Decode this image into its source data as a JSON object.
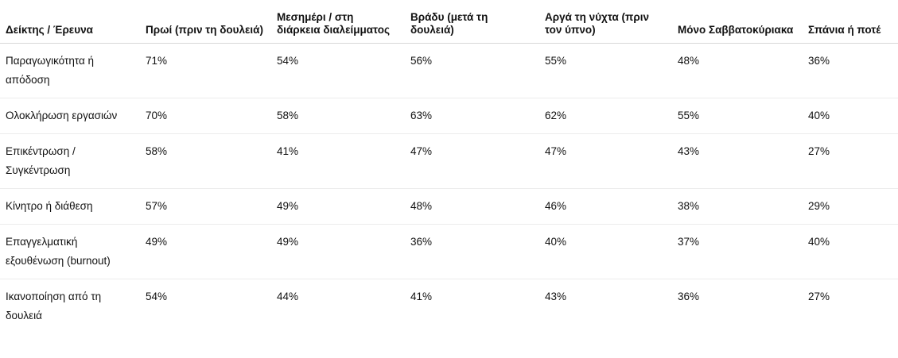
{
  "table": {
    "headers": [
      "Δείκτης / Έρευνα",
      "Πρωί (πριν τη δουλειά)",
      "Μεσημέρι / στη διάρκεια διαλείμματος",
      "Βράδυ (μετά τη δουλειά)",
      "Αργά τη νύχτα (πριν τον ύπνο)",
      "Μόνο Σαββατοκύριακα",
      "Σπάνια ή ποτέ"
    ],
    "rows": [
      [
        "Παραγωγικότητα ή απόδοση",
        "71%",
        "54%",
        "56%",
        "55%",
        "48%",
        "36%"
      ],
      [
        "Ολοκλήρωση εργασιών",
        "70%",
        "58%",
        "63%",
        "62%",
        "55%",
        "40%"
      ],
      [
        "Επικέντρωση / Συγκέντρωση",
        "58%",
        "41%",
        "47%",
        "47%",
        "43%",
        "27%"
      ],
      [
        "Κίνητρο ή διάθεση",
        "57%",
        "49%",
        "48%",
        "46%",
        "38%",
        "29%"
      ],
      [
        "Επαγγελματική εξουθένωση (burnout)",
        "49%",
        "49%",
        "36%",
        "40%",
        "37%",
        "40%"
      ],
      [
        "Ικανοποίηση από τη δουλειά",
        "54%",
        "44%",
        "41%",
        "43%",
        "36%",
        "27%"
      ]
    ]
  }
}
